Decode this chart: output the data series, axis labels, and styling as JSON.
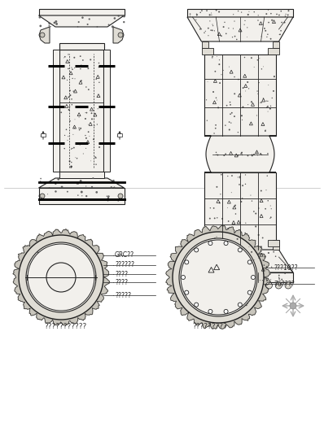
{
  "bg_color": "#ffffff",
  "title_bottom_left": "???????????",
  "title_bottom_right": "?????????",
  "label_left_circle": [
    "GRC??",
    "??????",
    "????",
    "????",
    "?????"
  ],
  "label_right_circle": [
    "???10??",
    "76????"
  ],
  "line_color": "#222222",
  "light_fill": "#f2f0ec",
  "medium_fill": "#e0ddd5",
  "dark_fill": "#c8c5bc"
}
